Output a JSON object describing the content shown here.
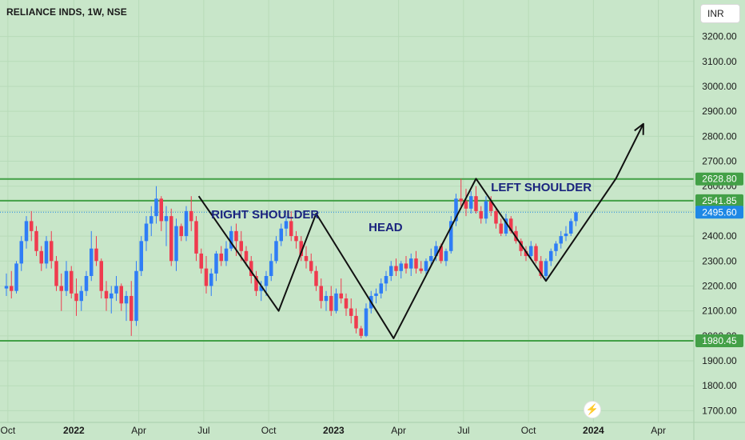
{
  "header": {
    "symbol_title": "RELIANCE INDS, 1W, NSE",
    "currency": "INR"
  },
  "chart_data": {
    "type": "candlestick",
    "title": "RELIANCE INDS, 1W, NSE",
    "ylim": [
      1650,
      3250
    ],
    "y_ticks": [
      "1700.00",
      "1800.00",
      "1900.00",
      "2000.00",
      "2100.00",
      "2200.00",
      "2300.00",
      "2400.00",
      "2500.00",
      "2600.00",
      "2700.00",
      "2800.00",
      "2900.00",
      "3000.00",
      "3100.00",
      "3200.00"
    ],
    "x_ticks": [
      {
        "label": "Oct",
        "bold": false,
        "pos": 0.3
      },
      {
        "label": "2022",
        "bold": true,
        "pos": 13.5
      },
      {
        "label": "Apr",
        "bold": false,
        "pos": 26.5
      },
      {
        "label": "Jul",
        "bold": false,
        "pos": 39.5
      },
      {
        "label": "Oct",
        "bold": false,
        "pos": 52.5
      },
      {
        "label": "2023",
        "bold": true,
        "pos": 65.5
      },
      {
        "label": "Apr",
        "bold": false,
        "pos": 78.5
      },
      {
        "label": "Jul",
        "bold": false,
        "pos": 91.5
      },
      {
        "label": "Oct",
        "bold": false,
        "pos": 104.5
      },
      {
        "label": "2024",
        "bold": true,
        "pos": 117.5
      },
      {
        "label": "Apr",
        "bold": false,
        "pos": 130.5
      }
    ],
    "price_levels": [
      {
        "value": 2628.8,
        "label": "2628.80",
        "color": "#43a047"
      },
      {
        "value": 2541.85,
        "label": "2541.85",
        "color": "#43a047"
      },
      {
        "value": 2495.6,
        "label": "2495.60",
        "color": "#1e88e5"
      },
      {
        "value": 1980.45,
        "label": "1980.45",
        "color": "#43a047"
      }
    ],
    "pattern_line": [
      [
        38.5,
        2560
      ],
      [
        54.5,
        2100
      ],
      [
        62,
        2490
      ],
      [
        77.5,
        1990
      ],
      [
        94,
        2630
      ],
      [
        108,
        2220
      ],
      [
        122,
        2630
      ],
      [
        127.5,
        2850
      ]
    ],
    "annotations": [
      {
        "text": "RIGHT SHOULDER",
        "bar": 41,
        "y": 2483
      },
      {
        "text": "HEAD",
        "bar": 72.5,
        "y": 2432
      },
      {
        "text": "LEFT SHOULDER",
        "bar": 97,
        "y": 2594
      }
    ],
    "candles": [
      [
        2190,
        2250,
        2160,
        2200
      ],
      [
        2200,
        2260,
        2150,
        2180
      ],
      [
        2180,
        2300,
        2170,
        2290
      ],
      [
        2290,
        2400,
        2260,
        2380
      ],
      [
        2380,
        2480,
        2350,
        2460
      ],
      [
        2460,
        2500,
        2380,
        2420
      ],
      [
        2420,
        2440,
        2320,
        2340
      ],
      [
        2340,
        2360,
        2260,
        2290
      ],
      [
        2290,
        2400,
        2270,
        2380
      ],
      [
        2380,
        2420,
        2270,
        2300
      ],
      [
        2300,
        2320,
        2180,
        2200
      ],
      [
        2200,
        2250,
        2100,
        2180
      ],
      [
        2180,
        2300,
        2160,
        2260
      ],
      [
        2260,
        2280,
        2150,
        2170
      ],
      [
        2170,
        2230,
        2080,
        2140
      ],
      [
        2140,
        2200,
        2100,
        2180
      ],
      [
        2180,
        2260,
        2160,
        2240
      ],
      [
        2240,
        2420,
        2220,
        2350
      ],
      [
        2350,
        2400,
        2280,
        2300
      ],
      [
        2300,
        2310,
        2150,
        2180
      ],
      [
        2180,
        2220,
        2100,
        2150
      ],
      [
        2150,
        2200,
        2090,
        2170
      ],
      [
        2170,
        2240,
        2140,
        2200
      ],
      [
        2200,
        2210,
        2100,
        2130
      ],
      [
        2130,
        2180,
        2060,
        2160
      ],
      [
        2160,
        2220,
        2000,
        2060
      ],
      [
        2060,
        2300,
        2040,
        2260
      ],
      [
        2260,
        2400,
        2240,
        2380
      ],
      [
        2380,
        2480,
        2340,
        2450
      ],
      [
        2450,
        2520,
        2400,
        2480
      ],
      [
        2480,
        2600,
        2450,
        2550
      ],
      [
        2550,
        2560,
        2420,
        2460
      ],
      [
        2460,
        2520,
        2360,
        2480
      ],
      [
        2480,
        2510,
        2280,
        2300
      ],
      [
        2300,
        2470,
        2260,
        2440
      ],
      [
        2440,
        2450,
        2380,
        2400
      ],
      [
        2400,
        2520,
        2380,
        2500
      ],
      [
        2500,
        2560,
        2420,
        2460
      ],
      [
        2460,
        2480,
        2300,
        2330
      ],
      [
        2330,
        2350,
        2250,
        2270
      ],
      [
        2270,
        2320,
        2170,
        2200
      ],
      [
        2200,
        2270,
        2160,
        2250
      ],
      [
        2250,
        2340,
        2220,
        2330
      ],
      [
        2330,
        2360,
        2280,
        2300
      ],
      [
        2300,
        2380,
        2280,
        2350
      ],
      [
        2350,
        2440,
        2340,
        2420
      ],
      [
        2420,
        2450,
        2320,
        2380
      ],
      [
        2380,
        2420,
        2300,
        2340
      ],
      [
        2340,
        2360,
        2280,
        2300
      ],
      [
        2300,
        2320,
        2210,
        2240
      ],
      [
        2240,
        2260,
        2160,
        2180
      ],
      [
        2180,
        2220,
        2140,
        2200
      ],
      [
        2200,
        2260,
        2160,
        2240
      ],
      [
        2240,
        2330,
        2220,
        2300
      ],
      [
        2300,
        2400,
        2290,
        2380
      ],
      [
        2380,
        2450,
        2360,
        2430
      ],
      [
        2430,
        2480,
        2400,
        2460
      ],
      [
        2460,
        2500,
        2380,
        2400
      ],
      [
        2400,
        2420,
        2350,
        2380
      ],
      [
        2380,
        2400,
        2300,
        2320
      ],
      [
        2320,
        2360,
        2270,
        2300
      ],
      [
        2300,
        2330,
        2250,
        2260
      ],
      [
        2260,
        2280,
        2180,
        2200
      ],
      [
        2200,
        2230,
        2110,
        2140
      ],
      [
        2140,
        2180,
        2100,
        2160
      ],
      [
        2160,
        2200,
        2080,
        2100
      ],
      [
        2100,
        2190,
        2090,
        2170
      ],
      [
        2170,
        2230,
        2130,
        2150
      ],
      [
        2150,
        2170,
        2080,
        2110
      ],
      [
        2110,
        2150,
        2050,
        2080
      ],
      [
        2080,
        2110,
        2010,
        2030
      ],
      [
        2030,
        2040,
        1990,
        2000
      ],
      [
        2000,
        2130,
        1995,
        2110
      ],
      [
        2110,
        2180,
        2090,
        2160
      ],
      [
        2160,
        2190,
        2130,
        2170
      ],
      [
        2170,
        2230,
        2150,
        2210
      ],
      [
        2210,
        2260,
        2180,
        2240
      ],
      [
        2240,
        2300,
        2220,
        2280
      ],
      [
        2280,
        2310,
        2240,
        2260
      ],
      [
        2260,
        2300,
        2230,
        2290
      ],
      [
        2290,
        2320,
        2250,
        2270
      ],
      [
        2270,
        2330,
        2240,
        2310
      ],
      [
        2310,
        2340,
        2250,
        2270
      ],
      [
        2270,
        2300,
        2250,
        2260
      ],
      [
        2260,
        2310,
        2240,
        2300
      ],
      [
        2300,
        2350,
        2280,
        2320
      ],
      [
        2320,
        2380,
        2300,
        2360
      ],
      [
        2360,
        2370,
        2290,
        2300
      ],
      [
        2300,
        2350,
        2280,
        2340
      ],
      [
        2340,
        2480,
        2330,
        2460
      ],
      [
        2460,
        2570,
        2440,
        2550
      ],
      [
        2550,
        2630,
        2520,
        2540
      ],
      [
        2540,
        2590,
        2480,
        2510
      ],
      [
        2510,
        2580,
        2490,
        2560
      ],
      [
        2560,
        2600,
        2490,
        2500
      ],
      [
        2500,
        2520,
        2450,
        2470
      ],
      [
        2470,
        2560,
        2450,
        2540
      ],
      [
        2540,
        2560,
        2480,
        2500
      ],
      [
        2500,
        2510,
        2430,
        2450
      ],
      [
        2450,
        2470,
        2400,
        2410
      ],
      [
        2410,
        2490,
        2400,
        2470
      ],
      [
        2470,
        2480,
        2410,
        2420
      ],
      [
        2420,
        2440,
        2370,
        2380
      ],
      [
        2380,
        2390,
        2320,
        2340
      ],
      [
        2340,
        2360,
        2300,
        2320
      ],
      [
        2320,
        2380,
        2310,
        2360
      ],
      [
        2360,
        2370,
        2290,
        2300
      ],
      [
        2300,
        2320,
        2230,
        2240
      ],
      [
        2240,
        2310,
        2220,
        2300
      ],
      [
        2300,
        2350,
        2280,
        2340
      ],
      [
        2340,
        2380,
        2320,
        2370
      ],
      [
        2370,
        2420,
        2350,
        2400
      ],
      [
        2400,
        2440,
        2380,
        2410
      ],
      [
        2410,
        2470,
        2400,
        2460
      ],
      [
        2460,
        2500,
        2440,
        2495.6
      ]
    ]
  }
}
